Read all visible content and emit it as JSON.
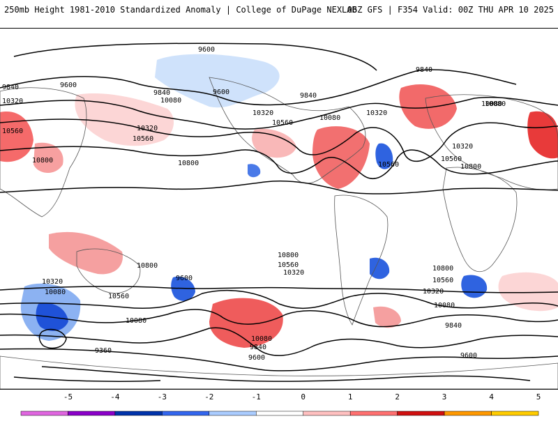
{
  "header": {
    "title": "250mb Height 1981-2010 Standardized Anomaly | College of DuPage NEXLAB",
    "valid": "06Z GFS | F354 Valid: 00Z THU APR 10 2025"
  },
  "contour_labels": [
    {
      "text": "9600"
    },
    {
      "text": "9600"
    },
    {
      "text": "9840"
    },
    {
      "text": "9840"
    },
    {
      "text": "9600"
    },
    {
      "text": "10320"
    },
    {
      "text": "10080"
    },
    {
      "text": "10560"
    },
    {
      "text": "9840"
    },
    {
      "text": "10320"
    },
    {
      "text": "10080"
    },
    {
      "text": "10560"
    },
    {
      "text": "10800"
    },
    {
      "text": "10080"
    },
    {
      "text": "10320"
    },
    {
      "text": "10560"
    },
    {
      "text": "10800"
    },
    {
      "text": "10560"
    },
    {
      "text": "10080"
    },
    {
      "text": "10320"
    },
    {
      "text": "10560"
    },
    {
      "text": "10800"
    },
    {
      "text": "10320"
    },
    {
      "text": "9840"
    },
    {
      "text": "9600"
    },
    {
      "text": "10080"
    },
    {
      "text": "9360"
    },
    {
      "text": "10800"
    },
    {
      "text": "10560"
    },
    {
      "text": "10320"
    },
    {
      "text": "10080"
    },
    {
      "text": "9840"
    },
    {
      "text": "9600"
    },
    {
      "text": "10800"
    },
    {
      "text": "10560"
    },
    {
      "text": "10320"
    },
    {
      "text": "10080"
    },
    {
      "text": "9840"
    },
    {
      "text": "9600"
    },
    {
      "text": "10800"
    },
    {
      "text": "10320"
    },
    {
      "text": "10560"
    },
    {
      "text": "10080"
    }
  ],
  "colorbar": {
    "ticks": [
      "-5",
      "-4",
      "-3",
      "-2",
      "-1",
      "0",
      "1",
      "2",
      "3",
      "4",
      "5"
    ],
    "colors": [
      "#e066e0",
      "#8a00c8",
      "#0033aa",
      "#3366ee",
      "#aaccff",
      "#ffffff",
      "#ffc0c0",
      "#ff7070",
      "#d01010",
      "#ff9900",
      "#ffcc00"
    ]
  }
}
